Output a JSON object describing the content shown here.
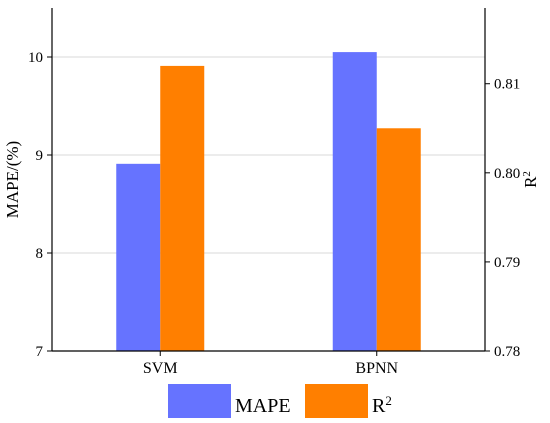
{
  "chart_data": {
    "type": "bar",
    "categories": [
      "SVM",
      "BPNN"
    ],
    "series": [
      {
        "name": "MAPE",
        "axis": "left",
        "color": "#6673FF",
        "values": [
          8.91,
          10.05
        ]
      },
      {
        "name": "R2",
        "axis": "right",
        "color": "#FF7F00",
        "values": [
          0.812,
          0.805
        ]
      }
    ],
    "left_axis": {
      "label": "MAPE/(%)",
      "ylim": [
        7,
        10.5
      ],
      "ticks": [
        "7",
        "8",
        "9",
        "10"
      ]
    },
    "right_axis": {
      "label_base": "R",
      "label_sup": "2",
      "ylim": [
        0.78,
        0.8185
      ],
      "ticks": [
        "0.78",
        "0.79",
        "0.80",
        "0.81"
      ]
    },
    "legend": {
      "placement": "bottom",
      "items": [
        {
          "label": "MAPE",
          "sup": "",
          "color": "#6673FF"
        },
        {
          "label": "R",
          "sup": "2",
          "color": "#FF7F00"
        }
      ]
    },
    "grid": true
  }
}
